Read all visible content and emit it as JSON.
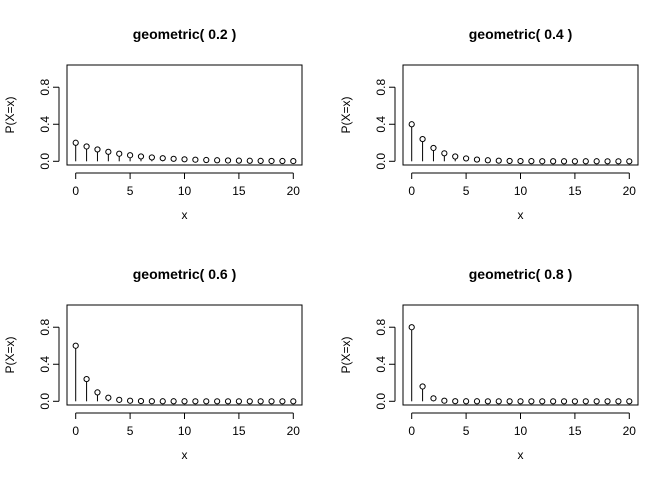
{
  "chart_data": [
    {
      "type": "lollipop",
      "title": "geometric( 0.2 )",
      "xlabel": "x",
      "ylabel": "P(X=x)",
      "xlim": [
        0,
        20
      ],
      "ylim": [
        0,
        1
      ],
      "xticks": [
        "0",
        "5",
        "10",
        "15",
        "20"
      ],
      "yticks": [
        "0.0",
        "0.4",
        "0.8"
      ],
      "x": [
        0,
        1,
        2,
        3,
        4,
        5,
        6,
        7,
        8,
        9,
        10,
        11,
        12,
        13,
        14,
        15,
        16,
        17,
        18,
        19,
        20
      ],
      "values": [
        0.2,
        0.16,
        0.128,
        0.1024,
        0.0819,
        0.0655,
        0.0524,
        0.0419,
        0.0336,
        0.0268,
        0.0215,
        0.0172,
        0.0137,
        0.011,
        0.0088,
        0.007,
        0.0056,
        0.0045,
        0.0036,
        0.0029,
        0.0023
      ]
    },
    {
      "type": "lollipop",
      "title": "geometric( 0.4 )",
      "xlabel": "x",
      "ylabel": "P(X=x)",
      "xlim": [
        0,
        20
      ],
      "ylim": [
        0,
        1
      ],
      "xticks": [
        "0",
        "5",
        "10",
        "15",
        "20"
      ],
      "yticks": [
        "0.0",
        "0.4",
        "0.8"
      ],
      "x": [
        0,
        1,
        2,
        3,
        4,
        5,
        6,
        7,
        8,
        9,
        10,
        11,
        12,
        13,
        14,
        15,
        16,
        17,
        18,
        19,
        20
      ],
      "values": [
        0.4,
        0.24,
        0.144,
        0.0864,
        0.0518,
        0.0311,
        0.0187,
        0.0112,
        0.0067,
        0.004,
        0.0024,
        0.0015,
        0.0009,
        0.0005,
        0.0003,
        0.0002,
        0.0001,
        0.0001,
        0,
        0,
        0
      ]
    },
    {
      "type": "lollipop",
      "title": "geometric( 0.6 )",
      "xlabel": "x",
      "ylabel": "P(X=x)",
      "xlim": [
        0,
        20
      ],
      "ylim": [
        0,
        1
      ],
      "xticks": [
        "0",
        "5",
        "10",
        "15",
        "20"
      ],
      "yticks": [
        "0.0",
        "0.4",
        "0.8"
      ],
      "x": [
        0,
        1,
        2,
        3,
        4,
        5,
        6,
        7,
        8,
        9,
        10,
        11,
        12,
        13,
        14,
        15,
        16,
        17,
        18,
        19,
        20
      ],
      "values": [
        0.6,
        0.24,
        0.096,
        0.0384,
        0.0154,
        0.0061,
        0.0025,
        0.001,
        0.0004,
        0.0002,
        0.0001,
        0,
        0,
        0,
        0,
        0,
        0,
        0,
        0,
        0,
        0
      ]
    },
    {
      "type": "lollipop",
      "title": "geometric( 0.8 )",
      "xlabel": "x",
      "ylabel": "P(X=x)",
      "xlim": [
        0,
        20
      ],
      "ylim": [
        0,
        1
      ],
      "xticks": [
        "0",
        "5",
        "10",
        "15",
        "20"
      ],
      "yticks": [
        "0.0",
        "0.4",
        "0.8"
      ],
      "x": [
        0,
        1,
        2,
        3,
        4,
        5,
        6,
        7,
        8,
        9,
        10,
        11,
        12,
        13,
        14,
        15,
        16,
        17,
        18,
        19,
        20
      ],
      "values": [
        0.8,
        0.16,
        0.032,
        0.0064,
        0.0013,
        0.0003,
        0.0001,
        0,
        0,
        0,
        0,
        0,
        0,
        0,
        0,
        0,
        0,
        0,
        0,
        0,
        0
      ]
    }
  ]
}
